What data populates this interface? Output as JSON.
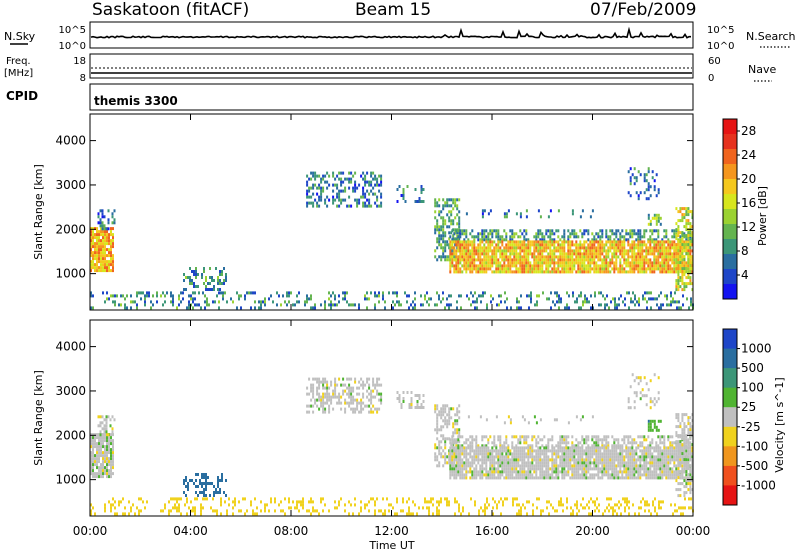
{
  "header": {
    "station": "Saskatoon (fitACF)",
    "beam": "Beam 15",
    "date": "07/Feb/2009"
  },
  "noise_panel": {
    "left_label": "N.Sky",
    "right_label": "N.Search",
    "left_ticks": [
      "10^5",
      "10^0"
    ],
    "right_ticks": [
      "10^5",
      "10^0"
    ]
  },
  "freq_panel": {
    "left_label": "Freq.",
    "left_unit": "[MHz]",
    "right_label": "Nave",
    "left_ticks": [
      "18",
      "8"
    ],
    "right_ticks": [
      "60",
      "0"
    ]
  },
  "cpid_panel": {
    "label": "CPID",
    "program": "themis 3300"
  },
  "colors": {
    "axis": "#000000",
    "ground_scatter": "#c0c0c0",
    "background": "#ffffff"
  },
  "chart_data": [
    {
      "type": "heatmap",
      "id": "power",
      "title": "",
      "xlabel": "Time UT",
      "ylabel": "Slant Range [km]",
      "x_ticks": [
        "00:00",
        "04:00",
        "08:00",
        "12:00",
        "16:00",
        "20:00",
        "00:00"
      ],
      "y_ticks": [
        "1000",
        "2000",
        "3000",
        "4000"
      ],
      "xlim": [
        0,
        24
      ],
      "ylim": [
        180,
        4600
      ],
      "colorbar": {
        "label": "Power [dB]",
        "ticks": [
          "4",
          "8",
          "12",
          "16",
          "20",
          "24",
          "28"
        ],
        "range": [
          0,
          30
        ],
        "colors": [
          "#1414f0",
          "#1e46c8",
          "#2a6ea0",
          "#3c9678",
          "#64b450",
          "#9bd232",
          "#d7e61e",
          "#f5c81e",
          "#f5961e",
          "#f0641e",
          "#e6321e",
          "#e61414"
        ]
      },
      "regions": [
        {
          "t0": 0.0,
          "t1": 0.9,
          "r0": 1050,
          "r1": 2050,
          "level": 20,
          "density": 0.85
        },
        {
          "t0": 0.3,
          "t1": 1.0,
          "r0": 2000,
          "r1": 2450,
          "level": 6,
          "density": 0.45
        },
        {
          "t0": 3.7,
          "t1": 5.4,
          "r0": 650,
          "r1": 1150,
          "level": 8,
          "density": 0.35
        },
        {
          "t0": 8.6,
          "t1": 11.6,
          "r0": 2550,
          "r1": 3300,
          "level": 7,
          "density": 0.45
        },
        {
          "t0": 12.2,
          "t1": 13.3,
          "r0": 2650,
          "r1": 3000,
          "level": 7,
          "density": 0.3
        },
        {
          "t0": 13.7,
          "t1": 14.7,
          "r0": 1300,
          "r1": 2700,
          "level": 10,
          "density": 0.55
        },
        {
          "t0": 14.3,
          "t1": 24.0,
          "r0": 1750,
          "r1": 2000,
          "level": 9,
          "density": 0.55
        },
        {
          "t0": 14.3,
          "t1": 24.0,
          "r0": 1050,
          "r1": 1750,
          "level": 19,
          "density": 0.88
        },
        {
          "t0": 14.8,
          "t1": 20.0,
          "r0": 2250,
          "r1": 2450,
          "level": 6,
          "density": 0.12
        },
        {
          "t0": 21.4,
          "t1": 22.6,
          "r0": 2650,
          "r1": 3400,
          "level": 6,
          "density": 0.2
        },
        {
          "t0": 22.2,
          "t1": 22.7,
          "r0": 2100,
          "r1": 2350,
          "level": 12,
          "density": 0.7
        },
        {
          "t0": 23.3,
          "t1": 24.0,
          "r0": 650,
          "r1": 2500,
          "level": 16,
          "density": 0.6
        },
        {
          "t0": 0.0,
          "t1": 24.0,
          "r0": 200,
          "r1": 600,
          "level": 8,
          "density": 0.25
        }
      ]
    },
    {
      "type": "heatmap",
      "id": "velocity",
      "title": "",
      "xlabel": "Time UT",
      "ylabel": "Slant Range [km]",
      "x_ticks": [
        "00:00",
        "04:00",
        "08:00",
        "12:00",
        "16:00",
        "20:00",
        "00:00"
      ],
      "y_ticks": [
        "1000",
        "2000",
        "3000",
        "4000"
      ],
      "xlim": [
        0,
        24
      ],
      "ylim": [
        180,
        4600
      ],
      "colorbar": {
        "label": "Velocity [m s^-1]",
        "ticks": [
          "1000",
          "500",
          "100",
          "25",
          "-25",
          "-100",
          "-500",
          "-1000"
        ],
        "range": [
          -1000,
          1000
        ],
        "colors": [
          "#1e46c8",
          "#2a6ea0",
          "#3c9678",
          "#50b432",
          "#c0c0c0",
          "#f0d21e",
          "#f0961e",
          "#f0501e",
          "#e61414"
        ]
      },
      "regions": [
        {
          "t0": 0.0,
          "t1": 0.9,
          "r0": 1050,
          "r1": 2050,
          "level": 0,
          "density": 0.85
        },
        {
          "t0": 0.3,
          "t1": 1.0,
          "r0": 2000,
          "r1": 2450,
          "level": 0,
          "density": 0.45
        },
        {
          "t0": 3.7,
          "t1": 5.4,
          "r0": 650,
          "r1": 1150,
          "level": 300,
          "density": 0.35
        },
        {
          "t0": 8.6,
          "t1": 11.6,
          "r0": 2550,
          "r1": 3300,
          "level": 0,
          "density": 0.45
        },
        {
          "t0": 12.2,
          "t1": 13.3,
          "r0": 2650,
          "r1": 3000,
          "level": 0,
          "density": 0.3
        },
        {
          "t0": 13.7,
          "t1": 14.7,
          "r0": 1300,
          "r1": 2700,
          "level": 0,
          "density": 0.55
        },
        {
          "t0": 14.3,
          "t1": 24.0,
          "r0": 1750,
          "r1": 2000,
          "level": 0,
          "density": 0.55
        },
        {
          "t0": 14.3,
          "t1": 24.0,
          "r0": 1050,
          "r1": 1750,
          "level": 0,
          "density": 0.88
        },
        {
          "t0": 14.8,
          "t1": 20.0,
          "r0": 2250,
          "r1": 2450,
          "level": 0,
          "density": 0.12
        },
        {
          "t0": 21.4,
          "t1": 22.6,
          "r0": 2650,
          "r1": 3400,
          "level": 0,
          "density": 0.2
        },
        {
          "t0": 22.2,
          "t1": 22.7,
          "r0": 2100,
          "r1": 2350,
          "level": 80,
          "density": 0.7
        },
        {
          "t0": 23.3,
          "t1": 24.0,
          "r0": 650,
          "r1": 2500,
          "level": 0,
          "density": 0.6
        },
        {
          "t0": 0.0,
          "t1": 24.0,
          "r0": 200,
          "r1": 600,
          "level": -60,
          "density": 0.25
        }
      ]
    }
  ]
}
